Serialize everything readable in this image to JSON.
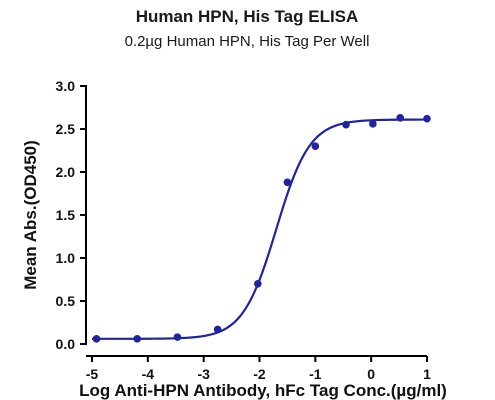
{
  "chart_data": {
    "type": "scatter",
    "title": "Human HPN, His Tag ELISA",
    "subtitle": "0.2µg Human HPN, His Tag Per Well",
    "xlabel": "Log Anti-HPN Antibody, hFc Tag Conc.(µg/ml)",
    "ylabel": "Mean Abs.(OD450)",
    "xlim": [
      -5,
      1
    ],
    "ylim": [
      0,
      3.0
    ],
    "x_ticks": [
      "-5",
      "-4",
      "-3",
      "-2",
      "-1",
      "0",
      "1"
    ],
    "y_ticks": [
      "0.0",
      "0.5",
      "1.0",
      "1.5",
      "2.0",
      "2.5",
      "3.0"
    ],
    "grid": false,
    "series": [
      {
        "x": [
          -4.92,
          -4.19,
          -3.47,
          -2.75,
          -2.03,
          -1.5,
          -1.0,
          -0.45,
          0.03,
          0.52,
          1.0
        ],
        "values": [
          0.06,
          0.06,
          0.08,
          0.17,
          0.7,
          1.88,
          2.3,
          2.55,
          2.56,
          2.63,
          2.62
        ],
        "color": "#1f24a0"
      }
    ],
    "fit": {
      "model": "4PL",
      "bottom": 0.06,
      "top": 2.61,
      "log_ec50": -1.7,
      "hill": 1.45,
      "color": "#1f24a0"
    }
  }
}
